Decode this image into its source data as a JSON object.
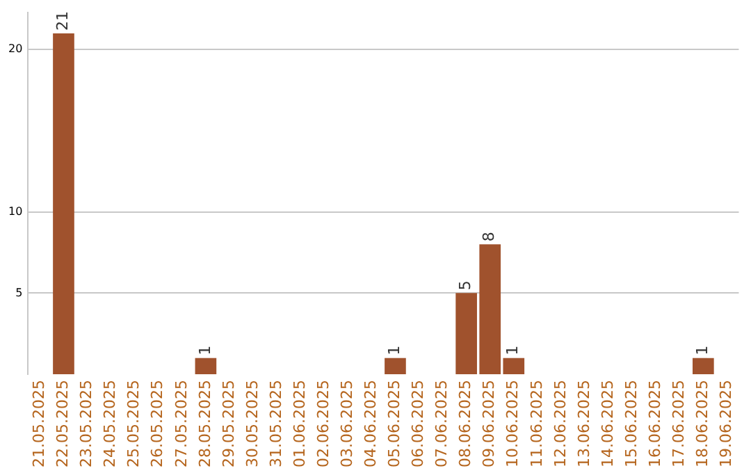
{
  "chart_data": {
    "type": "bar",
    "categories": [
      "21.05.2025",
      "22.05.2025",
      "23.05.2025",
      "24.05.2025",
      "25.05.2025",
      "26.05.2025",
      "27.05.2025",
      "28.05.2025",
      "29.05.2025",
      "30.05.2025",
      "31.05.2025",
      "01.06.2025",
      "02.06.2025",
      "03.06.2025",
      "04.06.2025",
      "05.06.2025",
      "06.06.2025",
      "07.06.2025",
      "08.06.2025",
      "09.06.2025",
      "10.06.2025",
      "11.06.2025",
      "12.06.2025",
      "13.06.2025",
      "14.06.2025",
      "15.06.2025",
      "16.06.2025",
      "17.06.2025",
      "18.06.2025",
      "19.06.2025"
    ],
    "values": [
      0,
      21,
      0,
      0,
      0,
      0,
      0,
      1,
      0,
      0,
      0,
      0,
      0,
      0,
      0,
      1,
      0,
      0,
      5,
      8,
      1,
      0,
      0,
      0,
      0,
      0,
      0,
      0,
      1,
      0
    ],
    "value_labels": [
      null,
      "21",
      null,
      null,
      null,
      null,
      null,
      "1",
      null,
      null,
      null,
      null,
      null,
      null,
      null,
      "1",
      null,
      null,
      "5",
      "8",
      "1",
      null,
      null,
      null,
      null,
      null,
      null,
      null,
      "1",
      null
    ],
    "color": "#a0522d",
    "ylim": [
      0,
      22.3
    ],
    "yticks": [
      5,
      10,
      20
    ],
    "grid": "y",
    "legend": false
  }
}
